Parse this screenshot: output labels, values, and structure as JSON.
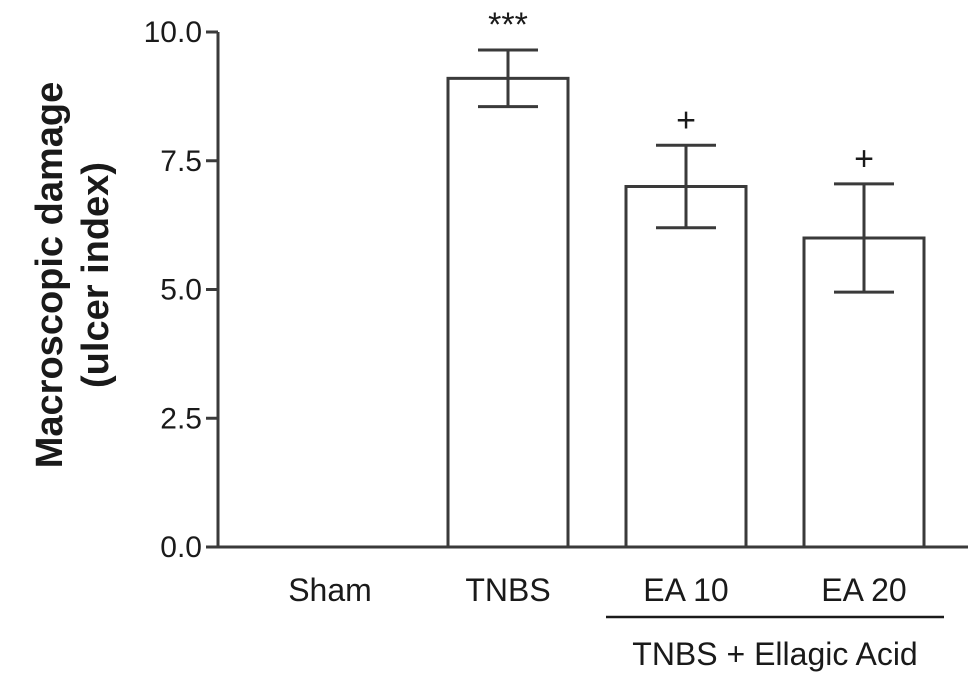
{
  "chart_data": {
    "type": "bar",
    "title": "",
    "xlabel": "",
    "ylabel": [
      "Macroscopic damage",
      "(ulcer index)"
    ],
    "ylim": [
      0,
      10
    ],
    "yticks": [
      0.0,
      2.5,
      5.0,
      7.5,
      10.0
    ],
    "ytick_labels": [
      "0.0",
      "2.5",
      "5.0",
      "7.5",
      "10.0"
    ],
    "categories": [
      "Sham",
      "TNBS",
      "EA 10",
      "EA 20"
    ],
    "values": [
      0,
      9.1,
      7.0,
      6.0
    ],
    "errors": [
      0,
      0.55,
      0.8,
      1.05
    ],
    "significance": [
      "",
      "***",
      "+",
      "+"
    ],
    "group_label": {
      "text": "TNBS + Ellagic Acid",
      "categories": [
        "EA 10",
        "EA 20"
      ]
    },
    "bar_fill": "#ffffff",
    "bar_stroke": "#3a3a3a",
    "axis_color": "#3a3a3a"
  }
}
